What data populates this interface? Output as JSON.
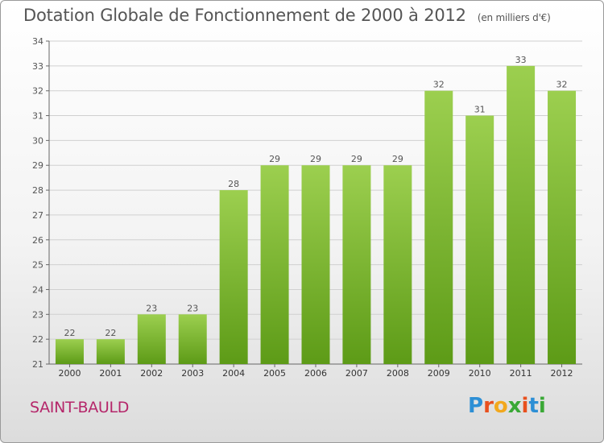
{
  "header": {
    "title": "Dotation Globale de Fonctionnement de 2000 à 2012",
    "unit": "(en milliers d'€)"
  },
  "footer": {
    "commune": "SAINT-BAULD",
    "logo_letters": [
      "P",
      "r",
      "o",
      "x",
      "i",
      "t",
      "i"
    ],
    "logo_colors": [
      "#2d8fd5",
      "#e8501e",
      "#f2a81d",
      "#3aa836",
      "#e8501e",
      "#2d8fd5",
      "#3aa836"
    ]
  },
  "colors": {
    "bar_top": "#9ccf4f",
    "bar_bottom": "#5d9b17",
    "grid": "#d0d0d0",
    "axis": "#666666",
    "text": "#555555"
  },
  "chart_data": {
    "type": "bar",
    "title": "Dotation Globale de Fonctionnement de 2000 à 2012",
    "subtitle": "(en milliers d'€)",
    "categories": [
      "2000",
      "2001",
      "2002",
      "2003",
      "2004",
      "2005",
      "2006",
      "2007",
      "2008",
      "2009",
      "2010",
      "2011",
      "2012"
    ],
    "values": [
      22,
      22,
      23,
      23,
      28,
      29,
      29,
      29,
      29,
      32,
      31,
      33,
      32
    ],
    "ylim": [
      21,
      34
    ],
    "yticks": [
      21,
      22,
      23,
      24,
      25,
      26,
      27,
      28,
      29,
      30,
      31,
      32,
      33,
      34
    ],
    "grid": true,
    "data_labels": true
  }
}
